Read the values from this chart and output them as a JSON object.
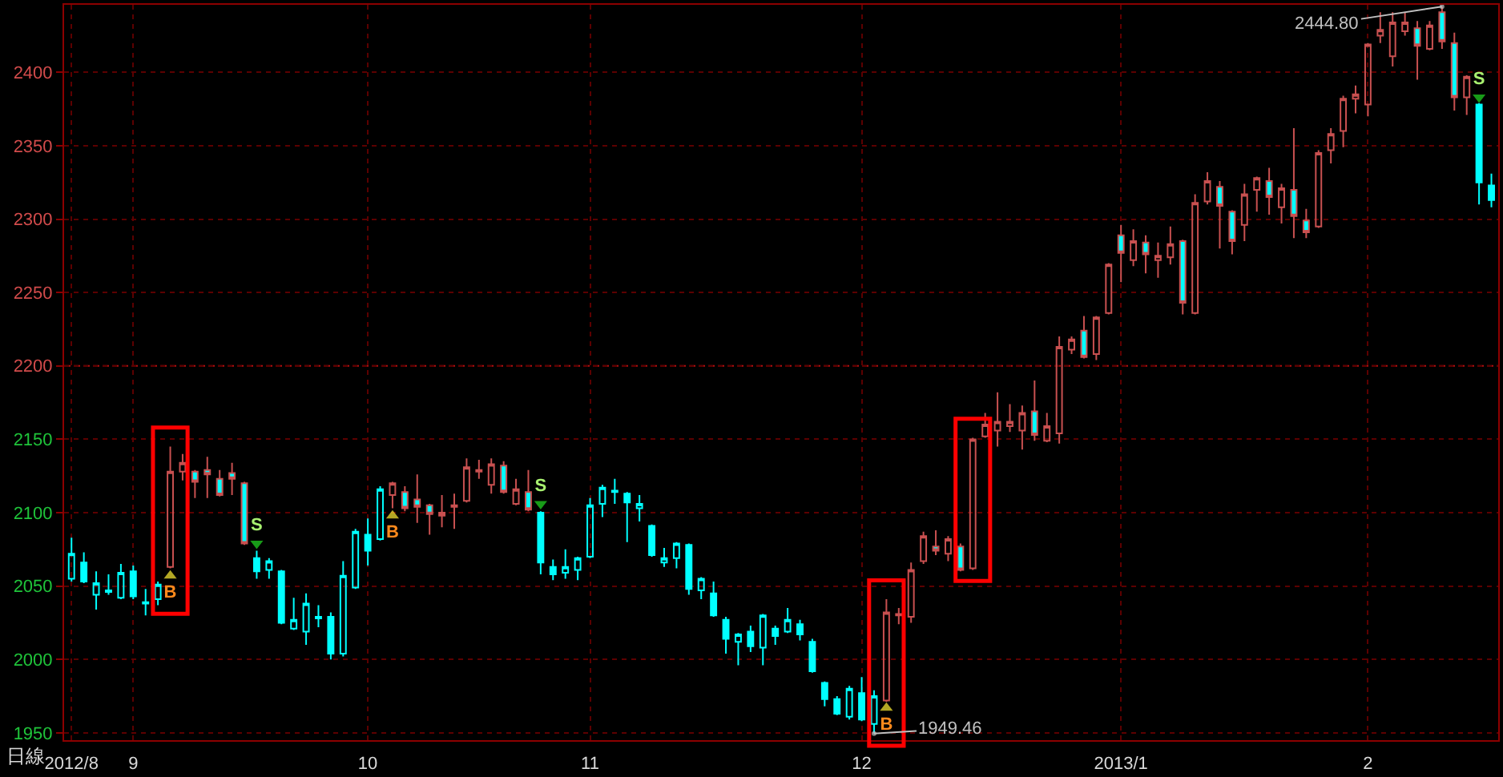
{
  "chart_data": {
    "type": "candlestick",
    "categories": [
      "2012/8",
      null,
      null,
      null,
      null,
      "9",
      null,
      null,
      null,
      null,
      null,
      null,
      null,
      null,
      null,
      null,
      null,
      null,
      null,
      null,
      null,
      null,
      null,
      null,
      "10",
      null,
      null,
      null,
      null,
      null,
      null,
      null,
      null,
      null,
      null,
      null,
      null,
      null,
      null,
      null,
      null,
      null,
      "11",
      null,
      null,
      null,
      null,
      null,
      null,
      null,
      null,
      null,
      null,
      null,
      null,
      null,
      null,
      null,
      null,
      null,
      null,
      null,
      null,
      null,
      "12",
      null,
      null,
      null,
      null,
      null,
      null,
      null,
      null,
      null,
      null,
      null,
      null,
      null,
      null,
      null,
      null,
      null,
      null,
      null,
      null,
      "2013/1",
      null,
      null,
      null,
      null,
      null,
      null,
      null,
      null,
      null,
      null,
      null,
      null,
      null,
      null,
      null,
      null,
      null,
      null,
      null,
      "2",
      null,
      null,
      null,
      null,
      null,
      null,
      null,
      null,
      null,
      null
    ],
    "ohlc": [
      [
        2055,
        2083,
        2053,
        2072
      ],
      [
        2066,
        2073,
        2052,
        2053
      ],
      [
        2044,
        2060,
        2034,
        2052
      ],
      [
        2046,
        2058,
        2044,
        2047
      ],
      [
        2042,
        2065,
        2041,
        2059
      ],
      [
        2060,
        2064,
        2041,
        2043
      ],
      [
        2039,
        2048,
        2030,
        2038
      ],
      [
        2041,
        2053,
        2037,
        2051
      ],
      [
        2063,
        2145,
        2062,
        2128
      ],
      [
        2128,
        2140,
        2122,
        2134
      ],
      [
        2128,
        2129,
        2110,
        2121
      ],
      [
        2129,
        2138,
        2110,
        2126
      ],
      [
        2123,
        2129,
        2111,
        2112
      ],
      [
        2127,
        2134,
        2112,
        2123
      ],
      [
        2120,
        2121,
        2078,
        2079
      ],
      [
        2069,
        2074,
        2055,
        2060
      ],
      [
        2061,
        2069,
        2055,
        2067
      ],
      [
        2060,
        2061,
        2024,
        2025
      ],
      [
        2021,
        2042,
        2020,
        2027
      ],
      [
        2019,
        2045,
        2010,
        2038
      ],
      [
        2029,
        2037,
        2022,
        2028
      ],
      [
        2029,
        2032,
        2000,
        2004
      ],
      [
        2004,
        2067,
        2002,
        2057
      ],
      [
        2049,
        2089,
        2048,
        2087
      ],
      [
        2085,
        2096,
        2064,
        2074
      ],
      [
        2082,
        2118,
        2081,
        2116
      ],
      [
        2112,
        2121,
        2103,
        2120
      ],
      [
        2114,
        2118,
        2101,
        2103
      ],
      [
        2109,
        2126,
        2093,
        2104
      ],
      [
        2105,
        2106,
        2085,
        2099
      ],
      [
        2098,
        2112,
        2090,
        2100
      ],
      [
        2104,
        2113,
        2089,
        2105
      ],
      [
        2108,
        2137,
        2107,
        2131
      ],
      [
        2128,
        2136,
        2123,
        2129
      ],
      [
        2119,
        2137,
        2113,
        2133
      ],
      [
        2132,
        2135,
        2113,
        2114
      ],
      [
        2106,
        2123,
        2105,
        2116
      ],
      [
        2114,
        2129,
        2101,
        2102
      ],
      [
        2100,
        2101,
        2058,
        2066
      ],
      [
        2063,
        2068,
        2054,
        2058
      ],
      [
        2059,
        2075,
        2055,
        2063
      ],
      [
        2061,
        2070,
        2054,
        2069
      ],
      [
        2070,
        2110,
        2069,
        2105
      ],
      [
        2106,
        2119,
        2097,
        2117
      ],
      [
        2115,
        2123,
        2106,
        2114
      ],
      [
        2113,
        2114,
        2080,
        2107
      ],
      [
        2103,
        2112,
        2094,
        2106
      ],
      [
        2091,
        2092,
        2070,
        2071
      ],
      [
        2066,
        2076,
        2063,
        2069
      ],
      [
        2069,
        2080,
        2062,
        2079
      ],
      [
        2078,
        2079,
        2044,
        2048
      ],
      [
        2047,
        2056,
        2041,
        2055
      ],
      [
        2045,
        2053,
        2029,
        2030
      ],
      [
        2027,
        2029,
        2004,
        2014
      ],
      [
        2012,
        2018,
        1996,
        2017
      ],
      [
        2019,
        2023,
        2005,
        2009
      ],
      [
        2008,
        2031,
        1996,
        2030
      ],
      [
        2021,
        2023,
        2010,
        2016
      ],
      [
        2019,
        2035,
        2018,
        2027
      ],
      [
        2024,
        2027,
        2013,
        2017
      ],
      [
        2012,
        2014,
        1991,
        1992
      ],
      [
        1984,
        1985,
        1968,
        1973
      ],
      [
        1973,
        1975,
        1962,
        1963
      ],
      [
        1961,
        1982,
        1959,
        1980
      ],
      [
        1977,
        1988,
        1958,
        1959
      ],
      [
        1956,
        1979,
        1949.46,
        1975
      ],
      [
        1972,
        2041,
        1971,
        2032
      ],
      [
        2030,
        2035,
        2024,
        2031
      ],
      [
        2029,
        2066,
        2025,
        2061
      ],
      [
        2067,
        2087,
        2065,
        2084
      ],
      [
        2077,
        2088,
        2071,
        2074
      ],
      [
        2072,
        2084,
        2067,
        2082
      ],
      [
        2077,
        2079,
        2060,
        2061
      ],
      [
        2062,
        2151,
        2061,
        2150
      ],
      [
        2152,
        2168,
        2151,
        2160
      ],
      [
        2156,
        2182,
        2145,
        2162
      ],
      [
        2159,
        2174,
        2155,
        2162
      ],
      [
        2156,
        2173,
        2143,
        2168
      ],
      [
        2169,
        2190,
        2149,
        2153
      ],
      [
        2149,
        2168,
        2148,
        2159
      ],
      [
        2154,
        2220,
        2147,
        2213
      ],
      [
        2211,
        2220,
        2208,
        2218
      ],
      [
        2224,
        2234,
        2205,
        2206
      ],
      [
        2208,
        2234,
        2204,
        2233
      ],
      [
        2236,
        2270,
        2235,
        2269
      ],
      [
        2289,
        2296,
        2257,
        2277
      ],
      [
        2272,
        2293,
        2268,
        2285
      ],
      [
        2284,
        2289,
        2263,
        2276
      ],
      [
        2272,
        2284,
        2260,
        2275
      ],
      [
        2274,
        2295,
        2269,
        2283
      ],
      [
        2285,
        2286,
        2235,
        2243
      ],
      [
        2236,
        2317,
        2235,
        2311
      ],
      [
        2312,
        2332,
        2310,
        2326
      ],
      [
        2322,
        2326,
        2280,
        2309
      ],
      [
        2305,
        2306,
        2276,
        2285
      ],
      [
        2296,
        2324,
        2285,
        2317
      ],
      [
        2320,
        2329,
        2305,
        2328
      ],
      [
        2326,
        2335,
        2303,
        2315
      ],
      [
        2308,
        2324,
        2297,
        2321
      ],
      [
        2320,
        2362,
        2287,
        2302
      ],
      [
        2299,
        2307,
        2287,
        2291
      ],
      [
        2295,
        2347,
        2294,
        2345
      ],
      [
        2347,
        2362,
        2338,
        2358
      ],
      [
        2360,
        2384,
        2349,
        2382
      ],
      [
        2382,
        2391,
        2372,
        2385
      ],
      [
        2378,
        2420,
        2370,
        2419
      ],
      [
        2425,
        2441,
        2420,
        2429
      ],
      [
        2411,
        2441,
        2404,
        2434
      ],
      [
        2428,
        2441,
        2425,
        2434
      ],
      [
        2430,
        2435,
        2395,
        2418
      ],
      [
        2416,
        2435,
        2415,
        2432
      ],
      [
        2441,
        2444.8,
        2416,
        2421
      ],
      [
        2420,
        2427,
        2374,
        2383
      ],
      [
        2383,
        2398,
        2371,
        2397
      ],
      [
        2378,
        2379,
        2310,
        2325
      ],
      [
        2323,
        2331,
        2308,
        2313
      ]
    ],
    "colors": [
      "#00ffff",
      "#00ffff",
      "#00ffff",
      "#00ffff",
      "#00ffff",
      "#00ffff",
      "#00ffff",
      "#00ffff",
      "#c85050",
      "#c85050",
      "#c85050",
      "#c85050",
      "#c85050",
      "#c85050",
      "#c85050",
      "#00ffff",
      "#00ffff",
      "#00ffff",
      "#00ffff",
      "#00ffff",
      "#00ffff",
      "#00ffff",
      "#00ffff",
      "#00ffff",
      "#00ffff",
      "#00ffff",
      "#c85050",
      "#c85050",
      "#c85050",
      "#c85050",
      "#c85050",
      "#c85050",
      "#c85050",
      "#c85050",
      "#c85050",
      "#c85050",
      "#c85050",
      "#c85050",
      "#00ffff",
      "#00ffff",
      "#00ffff",
      "#00ffff",
      "#00ffff",
      "#00ffff",
      "#00ffff",
      "#00ffff",
      "#00ffff",
      "#00ffff",
      "#00ffff",
      "#00ffff",
      "#00ffff",
      "#00ffff",
      "#00ffff",
      "#00ffff",
      "#00ffff",
      "#00ffff",
      "#00ffff",
      "#00ffff",
      "#00ffff",
      "#00ffff",
      "#00ffff",
      "#00ffff",
      "#00ffff",
      "#00ffff",
      "#00ffff",
      "#00ffff",
      "#c85050",
      "#c85050",
      "#c85050",
      "#c85050",
      "#c85050",
      "#c85050",
      "#c85050",
      "#c85050",
      "#c85050",
      "#c85050",
      "#c85050",
      "#c85050",
      "#c85050",
      "#c85050",
      "#c85050",
      "#c85050",
      "#c85050",
      "#c85050",
      "#c85050",
      "#c85050",
      "#c85050",
      "#c85050",
      "#c85050",
      "#c85050",
      "#c85050",
      "#c85050",
      "#c85050",
      "#c85050",
      "#c85050",
      "#c85050",
      "#c85050",
      "#c85050",
      "#c85050",
      "#c85050",
      "#c85050",
      "#c85050",
      "#c85050",
      "#c85050",
      "#c85050",
      "#c85050",
      "#c85050",
      "#c85050",
      "#c85050",
      "#c85050",
      "#c85050",
      "#c85050",
      "#c85050",
      "#c85050",
      "#00ffff",
      "#00ffff"
    ],
    "color": "#00ffff",
    "series": [
      {
        "type": "scatter",
        "color": "#ffee33",
        "marker": "triangle",
        "values": [
          null,
          null,
          null,
          null,
          null,
          null,
          null,
          null,
          2057,
          null,
          null,
          null,
          null,
          null,
          null,
          null,
          null,
          null,
          null,
          null,
          null,
          null,
          null,
          null,
          null,
          null,
          2098,
          null,
          null,
          null,
          null,
          null,
          null,
          null,
          null,
          null,
          null,
          null,
          null,
          null,
          null,
          null,
          null,
          null,
          null,
          null,
          null,
          null,
          null,
          null,
          null,
          null,
          null,
          null,
          null,
          null,
          null,
          null,
          null,
          null,
          null,
          null,
          null,
          null,
          null,
          null,
          1967,
          null,
          null,
          null,
          null,
          null,
          null,
          null,
          null,
          null,
          null,
          null,
          null,
          null,
          null,
          null,
          null,
          null,
          null,
          null,
          null,
          null,
          null,
          null,
          null,
          null,
          null,
          null,
          null,
          null,
          null,
          null,
          null,
          null,
          null,
          null,
          null,
          null,
          null,
          null,
          null,
          null,
          null,
          null,
          null,
          null,
          null,
          null,
          null,
          null
        ],
        "value_labels": [
          null,
          null,
          null,
          null,
          null,
          null,
          null,
          null,
          "B",
          null,
          null,
          null,
          null,
          null,
          null,
          null,
          null,
          null,
          null,
          null,
          null,
          null,
          null,
          null,
          null,
          null,
          "B",
          null,
          null,
          null,
          null,
          null,
          null,
          null,
          null,
          null,
          null,
          null,
          null,
          null,
          null,
          null,
          null,
          null,
          null,
          null,
          null,
          null,
          null,
          null,
          null,
          null,
          null,
          null,
          null,
          null,
          null,
          null,
          null,
          null,
          null,
          null,
          null,
          null,
          null,
          null,
          "B",
          null,
          null,
          null,
          null,
          null,
          null,
          null,
          null,
          null,
          null,
          null,
          null,
          null,
          null,
          null,
          null,
          null,
          null,
          null,
          null,
          null,
          null,
          null,
          null,
          null,
          null,
          null,
          null,
          null,
          null,
          null,
          null,
          null,
          null,
          null,
          null,
          null,
          null,
          null,
          null,
          null,
          null,
          null,
          null,
          null,
          null,
          null,
          null,
          null
        ]
      },
      {
        "type": "scatter",
        "color": "#22dd22",
        "marker": "triangle",
        "values": [
          null,
          null,
          null,
          null,
          null,
          null,
          null,
          null,
          null,
          null,
          null,
          null,
          null,
          null,
          null,
          2079,
          null,
          null,
          null,
          null,
          null,
          null,
          null,
          null,
          null,
          null,
          null,
          null,
          null,
          null,
          null,
          null,
          null,
          null,
          null,
          null,
          null,
          null,
          2106,
          null,
          null,
          null,
          null,
          null,
          null,
          null,
          null,
          null,
          null,
          null,
          null,
          null,
          null,
          null,
          null,
          null,
          null,
          null,
          null,
          null,
          null,
          null,
          null,
          null,
          null,
          null,
          null,
          null,
          null,
          null,
          null,
          null,
          null,
          null,
          null,
          null,
          null,
          null,
          null,
          null,
          null,
          null,
          null,
          null,
          null,
          null,
          null,
          null,
          null,
          null,
          null,
          null,
          null,
          null,
          null,
          null,
          null,
          null,
          null,
          null,
          null,
          null,
          null,
          null,
          null,
          null,
          null,
          null,
          null,
          null,
          null,
          null,
          null,
          null,
          2383,
          null
        ],
        "value_labels": [
          null,
          null,
          null,
          null,
          null,
          null,
          null,
          null,
          null,
          null,
          null,
          null,
          null,
          null,
          null,
          "S",
          null,
          null,
          null,
          null,
          null,
          null,
          null,
          null,
          null,
          null,
          null,
          null,
          null,
          null,
          null,
          null,
          null,
          null,
          null,
          null,
          null,
          null,
          "S",
          null,
          null,
          null,
          null,
          null,
          null,
          null,
          null,
          null,
          null,
          null,
          null,
          null,
          null,
          null,
          null,
          null,
          null,
          null,
          null,
          null,
          null,
          null,
          null,
          null,
          null,
          null,
          null,
          null,
          null,
          null,
          null,
          null,
          null,
          null,
          null,
          null,
          null,
          null,
          null,
          null,
          null,
          null,
          null,
          null,
          null,
          null,
          null,
          null,
          null,
          null,
          null,
          null,
          null,
          null,
          null,
          null,
          null,
          null,
          null,
          null,
          null,
          null,
          null,
          null,
          null,
          null,
          null,
          null,
          null,
          null,
          null,
          null,
          null,
          null,
          "S",
          null
        ]
      },
      {
        "type": "scatter",
        "color": "#c0c0c0",
        "marker": "circle",
        "values": [
          null,
          null,
          null,
          null,
          null,
          null,
          null,
          null,
          null,
          null,
          null,
          null,
          null,
          null,
          null,
          null,
          null,
          null,
          null,
          null,
          null,
          null,
          null,
          null,
          null,
          null,
          null,
          null,
          null,
          null,
          null,
          null,
          null,
          null,
          null,
          null,
          null,
          null,
          null,
          null,
          null,
          null,
          null,
          null,
          null,
          null,
          null,
          null,
          null,
          null,
          null,
          null,
          null,
          null,
          null,
          null,
          null,
          null,
          null,
          null,
          null,
          null,
          null,
          null,
          null,
          1949.46,
          null,
          null,
          null,
          null,
          null,
          null,
          null,
          null,
          null,
          null,
          null,
          null,
          null,
          null,
          null,
          null,
          null,
          null,
          null,
          null,
          null,
          null,
          null,
          null,
          null,
          null,
          null,
          null,
          null,
          null,
          null,
          null,
          null,
          null,
          null,
          null,
          null,
          null,
          null,
          null,
          null,
          null,
          null,
          null,
          null,
          2444.8,
          null,
          null,
          null,
          null
        ],
        "value_labels": [
          null,
          null,
          null,
          null,
          null,
          null,
          null,
          null,
          null,
          null,
          null,
          null,
          null,
          null,
          null,
          null,
          null,
          null,
          null,
          null,
          null,
          null,
          null,
          null,
          null,
          null,
          null,
          null,
          null,
          null,
          null,
          null,
          null,
          null,
          null,
          null,
          null,
          null,
          null,
          null,
          null,
          null,
          null,
          null,
          null,
          null,
          null,
          null,
          null,
          null,
          null,
          null,
          null,
          null,
          null,
          null,
          null,
          null,
          null,
          null,
          null,
          null,
          null,
          null,
          null,
          "1949.46",
          null,
          null,
          null,
          null,
          null,
          null,
          null,
          null,
          null,
          null,
          null,
          null,
          null,
          null,
          null,
          null,
          null,
          null,
          null,
          null,
          null,
          null,
          null,
          null,
          null,
          null,
          null,
          null,
          null,
          null,
          null,
          null,
          null,
          null,
          null,
          null,
          null,
          null,
          null,
          null,
          null,
          null,
          null,
          null,
          null,
          "2444.80",
          null,
          null,
          null,
          null
        ]
      }
    ],
    "ylim": [
      1945,
      2446
    ],
    "yticks": [
      1950,
      2000,
      2050,
      2100,
      2150,
      2200,
      2250,
      2300,
      2350,
      2400
    ],
    "grid": true,
    "ref_lines": [
      {
        "axis": "y",
        "value": 2200,
        "color": "#b01010",
        "line_style": "dashed"
      }
    ],
    "annotations": [
      "日線"
    ]
  }
}
